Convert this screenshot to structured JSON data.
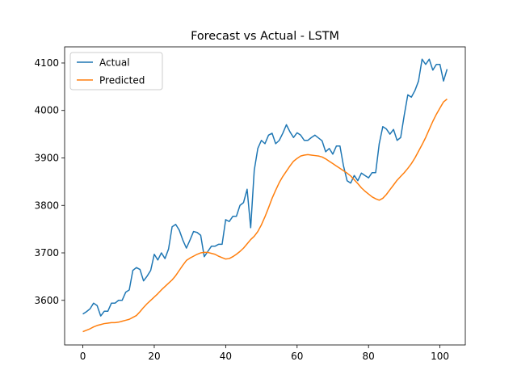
{
  "chart_data": {
    "type": "line",
    "title": "Forecast vs Actual - LSTM",
    "x": [
      0,
      1,
      2,
      3,
      4,
      5,
      6,
      7,
      8,
      9,
      10,
      11,
      12,
      13,
      14,
      15,
      16,
      17,
      18,
      19,
      20,
      21,
      22,
      23,
      24,
      25,
      26,
      27,
      28,
      29,
      30,
      31,
      32,
      33,
      34,
      35,
      36,
      37,
      38,
      39,
      40,
      41,
      42,
      43,
      44,
      45,
      46,
      47,
      48,
      49,
      50,
      51,
      52,
      53,
      54,
      55,
      56,
      57,
      58,
      59,
      60,
      61,
      62,
      63,
      64,
      65,
      66,
      67,
      68,
      69,
      70,
      71,
      72,
      73,
      74,
      75,
      76,
      77,
      78,
      79,
      80,
      81,
      82,
      83,
      84,
      85,
      86,
      87,
      88,
      89,
      90,
      91,
      92,
      93,
      94,
      95,
      96,
      97,
      98,
      99,
      100,
      101,
      102
    ],
    "series": [
      {
        "name": "Actual",
        "color": "#1f77b4",
        "values": [
          3571,
          3576,
          3582,
          3594,
          3589,
          3567,
          3577,
          3577,
          3594,
          3594,
          3600,
          3600,
          3617,
          3622,
          3663,
          3669,
          3665,
          3641,
          3651,
          3663,
          3697,
          3685,
          3700,
          3688,
          3708,
          3755,
          3760,
          3748,
          3727,
          3710,
          3727,
          3745,
          3743,
          3737,
          3692,
          3703,
          3714,
          3714,
          3718,
          3718,
          3770,
          3766,
          3777,
          3777,
          3800,
          3806,
          3834,
          3753,
          3874,
          3920,
          3937,
          3930,
          3948,
          3952,
          3930,
          3937,
          3952,
          3970,
          3955,
          3943,
          3953,
          3948,
          3937,
          3937,
          3943,
          3948,
          3942,
          3936,
          3913,
          3920,
          3908,
          3925,
          3925,
          3883,
          3852,
          3847,
          3863,
          3852,
          3868,
          3863,
          3858,
          3869,
          3869,
          3930,
          3966,
          3961,
          3950,
          3960,
          3937,
          3943,
          3990,
          4033,
          4028,
          4042,
          4062,
          4108,
          4097,
          4108,
          4085,
          4097,
          4097,
          4062,
          4087
        ]
      },
      {
        "name": "Predicted",
        "color": "#ff7f0e",
        "values": [
          3534,
          3537,
          3540,
          3544,
          3547,
          3549,
          3551,
          3552,
          3553,
          3553,
          3554,
          3556,
          3558,
          3560,
          3564,
          3568,
          3576,
          3585,
          3593,
          3600,
          3607,
          3614,
          3622,
          3629,
          3636,
          3643,
          3652,
          3663,
          3674,
          3684,
          3689,
          3693,
          3697,
          3700,
          3701,
          3701,
          3699,
          3697,
          3693,
          3690,
          3687,
          3688,
          3692,
          3697,
          3703,
          3710,
          3719,
          3728,
          3735,
          3745,
          3759,
          3776,
          3795,
          3815,
          3832,
          3848,
          3861,
          3872,
          3883,
          3893,
          3899,
          3904,
          3906,
          3907,
          3906,
          3905,
          3904,
          3902,
          3898,
          3893,
          3888,
          3883,
          3878,
          3873,
          3868,
          3862,
          3854,
          3846,
          3837,
          3830,
          3824,
          3818,
          3814,
          3811,
          3815,
          3823,
          3833,
          3843,
          3853,
          3861,
          3869,
          3878,
          3888,
          3900,
          3914,
          3928,
          3943,
          3960,
          3977,
          3992,
          4005,
          4018,
          4024
        ]
      }
    ],
    "xlim": [
      -5.1,
      107.1
    ],
    "ylim": [
      3506,
      4134
    ],
    "xticks": [
      0,
      20,
      40,
      60,
      80,
      100
    ],
    "yticks": [
      3600,
      3700,
      3800,
      3900,
      4000,
      4100
    ],
    "grid": false,
    "legend": "upper left"
  }
}
